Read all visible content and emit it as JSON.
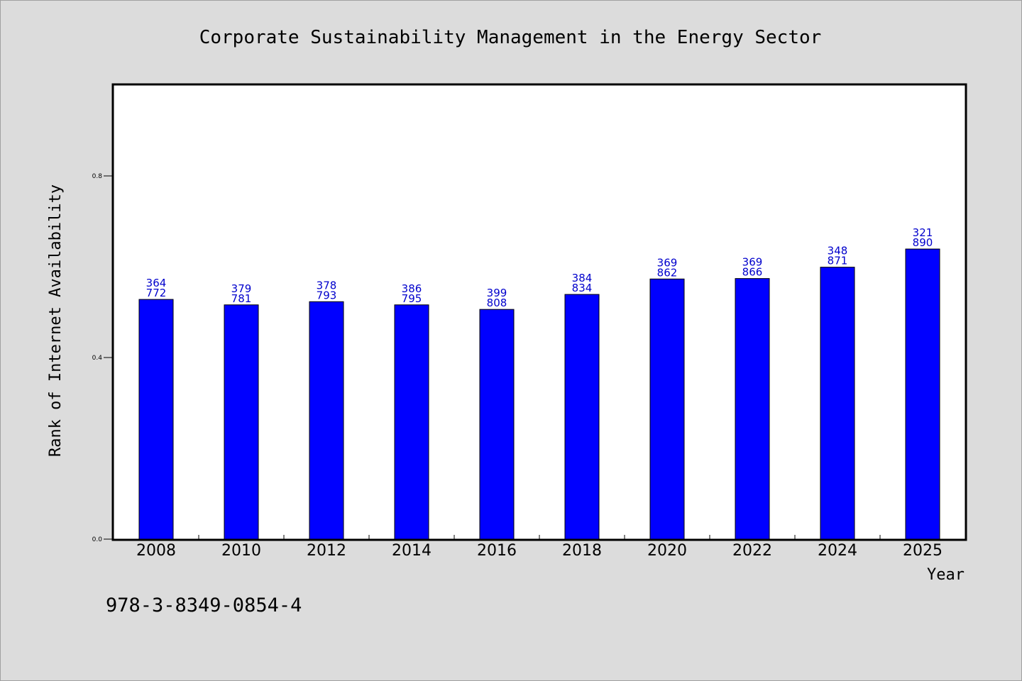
{
  "chart_data": {
    "type": "bar",
    "title": "Corporate Sustainability Management in the Energy Sector",
    "xlabel": "Year",
    "ylabel": "Rank of Internet Availability",
    "categories": [
      "2008",
      "2010",
      "2012",
      "2014",
      "2016",
      "2018",
      "2020",
      "2022",
      "2024",
      "2025"
    ],
    "series": [
      {
        "values": [
          0.528,
          0.516,
          0.523,
          0.516,
          0.506,
          0.539,
          0.573,
          0.574,
          0.599,
          0.639
        ],
        "labels": [
          [
            "364",
            "772"
          ],
          [
            "379",
            "781"
          ],
          [
            "378",
            "793"
          ],
          [
            "386",
            "795"
          ],
          [
            "399",
            "808"
          ],
          [
            "384",
            "834"
          ],
          [
            "369",
            "862"
          ],
          [
            "369",
            "866"
          ],
          [
            "348",
            "871"
          ],
          [
            "321",
            "890"
          ]
        ]
      }
    ],
    "ylim": [
      0,
      1.0
    ],
    "yticks": [
      0.0,
      0.4,
      0.8
    ],
    "ytick_labels": [
      "0.0",
      "0.4",
      "0.8"
    ],
    "grid": false,
    "bar_color": "#0000ff",
    "label_color": "#0000cc"
  },
  "footnote": "978-3-8349-0854-4"
}
